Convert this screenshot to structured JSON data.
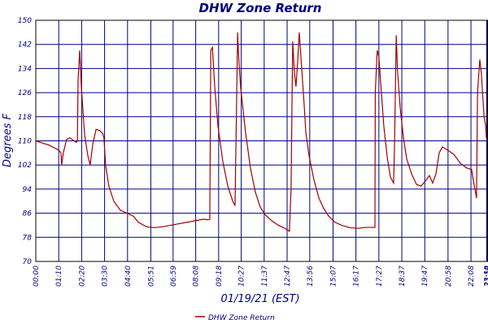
{
  "chart_data": {
    "type": "line",
    "title": "DHW Zone Return",
    "ylabel": "Degrees F",
    "xlabel": "01/19/21 (EST)",
    "legend": "bottom",
    "grid": true,
    "ylim": [
      70,
      150
    ],
    "yticks": [
      70,
      78,
      86,
      94,
      102,
      110,
      118,
      126,
      134,
      142,
      150
    ],
    "xlim": [
      0,
      1380
    ],
    "xticks": [
      {
        "value": 0,
        "label": "00:00"
      },
      {
        "value": 70,
        "label": "01:10"
      },
      {
        "value": 140,
        "label": "02:20"
      },
      {
        "value": 210,
        "label": "03:30"
      },
      {
        "value": 280,
        "label": "04:40"
      },
      {
        "value": 351,
        "label": "05:51"
      },
      {
        "value": 419,
        "label": "06:59"
      },
      {
        "value": 488,
        "label": "08:08"
      },
      {
        "value": 558,
        "label": "09:18"
      },
      {
        "value": 627,
        "label": "10:27"
      },
      {
        "value": 697,
        "label": "11:37"
      },
      {
        "value": 767,
        "label": "12:47"
      },
      {
        "value": 836,
        "label": "13:56"
      },
      {
        "value": 907,
        "label": "15:07"
      },
      {
        "value": 977,
        "label": "16:17"
      },
      {
        "value": 1047,
        "label": "17:27"
      },
      {
        "value": 1117,
        "label": "18:37"
      },
      {
        "value": 1187,
        "label": "19:47"
      },
      {
        "value": 1258,
        "label": "20:58"
      },
      {
        "value": 1328,
        "label": "22:08"
      },
      {
        "value": 1376,
        "label": "23:18"
      },
      {
        "value": 1379,
        "label": "23:59"
      }
    ],
    "x": [
      0,
      40,
      69,
      77,
      79,
      84,
      94,
      104,
      124,
      127,
      129,
      134,
      139,
      149,
      159,
      166,
      174,
      184,
      194,
      204,
      208,
      213,
      223,
      238,
      258,
      278,
      298,
      313,
      338,
      362,
      387,
      412,
      437,
      462,
      486,
      511,
      526,
      531,
      534,
      539,
      546,
      556,
      571,
      586,
      601,
      608,
      611,
      616,
      618,
      625,
      640,
      655,
      670,
      685,
      700,
      720,
      740,
      760,
      774,
      779,
      784,
      789,
      794,
      799,
      804,
      809,
      819,
      824,
      834,
      849,
      864,
      879,
      894,
      913,
      933,
      958,
      983,
      1008,
      1035,
      1036,
      1042,
      1047,
      1052,
      1062,
      1072,
      1082,
      1092,
      1095,
      1100,
      1104,
      1112,
      1122,
      1132,
      1147,
      1162,
      1176,
      1191,
      1201,
      1211,
      1221,
      1231,
      1241,
      1256,
      1276,
      1296,
      1315,
      1330,
      1335,
      1345,
      1348,
      1355,
      1360,
      1368,
      1373,
      1375
    ],
    "series": [
      {
        "name": "DHW Zone Return",
        "color": "#a00000",
        "values": [
          110,
          108.6,
          107,
          106,
          102,
          106,
          110.5,
          111,
          109.5,
          110,
          130,
          140,
          128,
          112,
          105,
          102,
          109,
          113.8,
          113.5,
          112.5,
          111,
          102,
          95,
          90,
          87,
          86,
          85,
          83,
          81.5,
          81.2,
          81.5,
          82,
          82.5,
          83,
          83.5,
          84,
          83.8,
          84,
          140,
          141,
          128,
          115,
          103,
          95,
          90,
          88.5,
          110,
          146,
          140,
          128,
          113,
          101,
          93,
          88,
          85.5,
          83.5,
          82,
          81,
          80,
          94,
          143,
          133,
          128,
          136,
          146,
          138,
          122,
          113,
          105,
          97,
          91,
          87.5,
          85,
          83,
          82,
          81.2,
          81,
          81.3,
          81.3,
          126,
          140,
          138,
          130,
          115,
          105,
          98,
          96,
          110,
          145,
          133,
          121,
          111,
          104,
          99,
          95.5,
          95,
          97,
          98.5,
          96,
          99,
          106,
          108,
          107,
          105.5,
          102.5,
          101,
          100.5,
          97,
          91,
          126,
          137,
          132,
          118,
          115,
          111
        ]
      }
    ]
  }
}
